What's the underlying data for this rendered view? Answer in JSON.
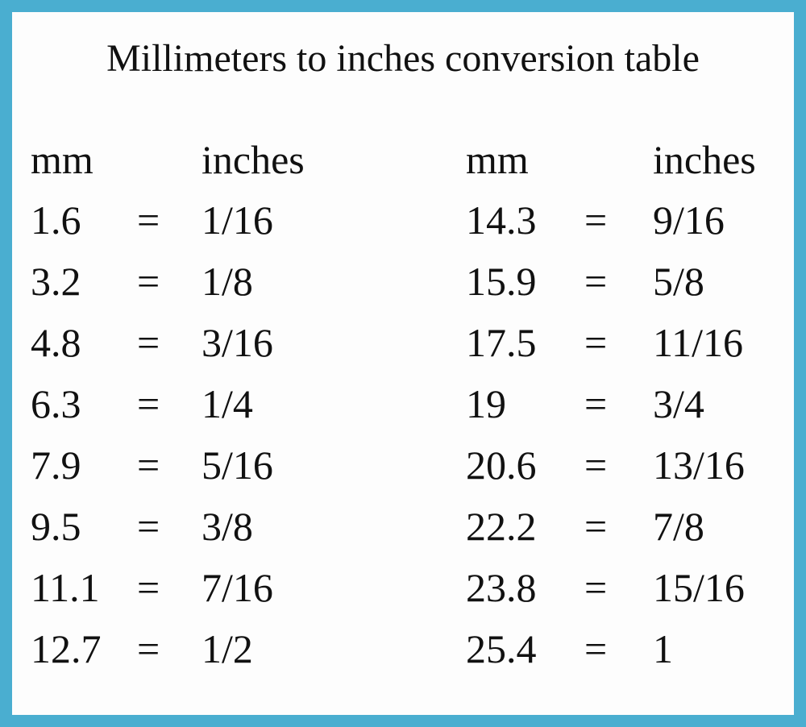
{
  "title": "Millimeters to inches conversion table",
  "separator": "=",
  "tables": [
    {
      "header": [
        "mm",
        "inches"
      ],
      "rows": [
        [
          "1.6",
          "1/16"
        ],
        [
          "3.2",
          "1/8"
        ],
        [
          "4.8",
          "3/16"
        ],
        [
          "6.3",
          "1/4"
        ],
        [
          "7.9",
          "5/16"
        ],
        [
          "9.5",
          "3/8"
        ],
        [
          "11.1",
          "7/16"
        ],
        [
          "12.7",
          "1/2"
        ]
      ]
    },
    {
      "header": [
        "mm",
        "inches"
      ],
      "rows": [
        [
          "14.3",
          "9/16"
        ],
        [
          "15.9",
          "5/8"
        ],
        [
          "17.5",
          "11/16"
        ],
        [
          "19",
          "3/4"
        ],
        [
          "20.6",
          "13/16"
        ],
        [
          "22.2",
          "7/8"
        ],
        [
          "23.8",
          "15/16"
        ],
        [
          "25.4",
          "1"
        ]
      ]
    }
  ]
}
